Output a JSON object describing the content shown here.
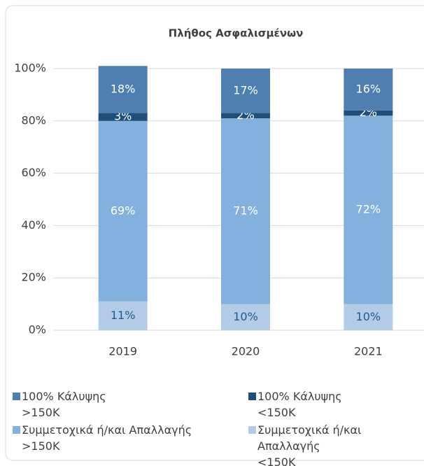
{
  "chart_data": {
    "type": "stacked_bar",
    "title": "Πλήθος Ασφαλισμένων",
    "categories": [
      "2019",
      "2020",
      "2021"
    ],
    "series": [
      {
        "name": "Συμμετοχικά ή/και Απαλλαγής <150K",
        "color": "#b4cbe7",
        "label_color": "#1f5a8c",
        "values": [
          11,
          10,
          10
        ],
        "value_labels": [
          "11%",
          "10%",
          "10%"
        ]
      },
      {
        "name": "Συμμετοχικά ή/και Απαλλαγής >150K",
        "color": "#84b0dd",
        "label_color": "#ffffff",
        "values": [
          69,
          71,
          72
        ],
        "value_labels": [
          "69%",
          "71%",
          "72%"
        ]
      },
      {
        "name": "100% Κάλυψης <150K",
        "color": "#1f4e79",
        "label_color": "#ffffff",
        "values": [
          3,
          2,
          2
        ],
        "value_labels": [
          "3%",
          "2%",
          "2%"
        ]
      },
      {
        "name": "100% Κάλυψης >150K",
        "color": "#4f7fb1",
        "label_color": "#ffffff",
        "values": [
          18,
          17,
          16
        ],
        "value_labels": [
          "18%",
          "17%",
          "16%"
        ]
      }
    ],
    "legend_order": [
      3,
      2,
      1,
      0
    ],
    "ylim": [
      0,
      100
    ],
    "yticks": [
      {
        "value": 0,
        "label": "0%"
      },
      {
        "value": 20,
        "label": "20%"
      },
      {
        "value": 40,
        "label": "40%"
      },
      {
        "value": 60,
        "label": "60%"
      },
      {
        "value": 80,
        "label": "80%"
      },
      {
        "value": 100,
        "label": "100%"
      }
    ],
    "grid": true
  }
}
